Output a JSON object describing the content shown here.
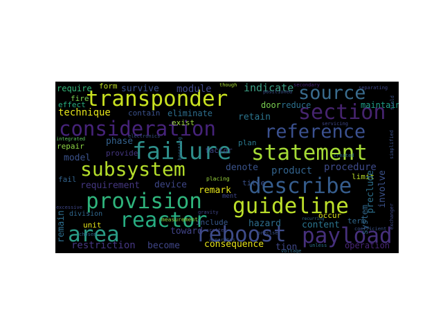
{
  "words": [
    {
      "id": "transponder",
      "text": "transponder",
      "color": "#c8e020"
    },
    {
      "id": "section",
      "text": "section",
      "color": "#46246f"
    },
    {
      "id": "consideration",
      "text": "consideration",
      "color": "#46237a"
    },
    {
      "id": "reference",
      "text": "reference",
      "color": "#3b5190"
    },
    {
      "id": "source",
      "text": "source",
      "color": "#3a6c8e"
    },
    {
      "id": "failure",
      "text": "failure",
      "color": "#2e8f8b"
    },
    {
      "id": "statement",
      "text": "statement",
      "color": "#a5db36"
    },
    {
      "id": "subsystem",
      "text": "subsystem",
      "color": "#b5de2b"
    },
    {
      "id": "describe",
      "text": "describe",
      "color": "#365d8d"
    },
    {
      "id": "provision",
      "text": "provision",
      "color": "#2fb47c"
    },
    {
      "id": "guideline",
      "text": "guideline",
      "color": "#bde02a"
    },
    {
      "id": "reactor",
      "text": "reactor",
      "color": "#27ad81"
    },
    {
      "id": "area",
      "text": "area",
      "color": "#2a9c86"
    },
    {
      "id": "reboost",
      "text": "reboost",
      "color": "#3e4c8a"
    },
    {
      "id": "payload",
      "text": "payload",
      "color": "#46307c"
    },
    {
      "id": "technique",
      "text": "technique",
      "color": "#e6e51a"
    },
    {
      "id": "require",
      "text": "require",
      "color": "#35b779"
    },
    {
      "id": "form",
      "text": "form",
      "color": "#c0df25"
    },
    {
      "id": "survive",
      "text": "survive",
      "color": "#3b518b"
    },
    {
      "id": "module",
      "text": "module",
      "color": "#3f4788"
    },
    {
      "id": "indicate",
      "text": "indicate",
      "color": "#3d9f85"
    },
    {
      "id": "door",
      "text": "door",
      "color": "#7ad151"
    },
    {
      "id": "reduce",
      "text": "reduce",
      "color": "#2c718e"
    },
    {
      "id": "maintain",
      "text": "maintain",
      "color": "#1f9e89"
    },
    {
      "id": "fire",
      "text": "fire",
      "color": "#7ad151"
    },
    {
      "id": "effect",
      "text": "effect",
      "color": "#28ae80"
    },
    {
      "id": "contain",
      "text": "contain",
      "color": "#3b528b"
    },
    {
      "id": "eliminate",
      "text": "eliminate",
      "color": "#2e6e8e"
    },
    {
      "id": "exist",
      "text": "exist",
      "color": "#9cd73e"
    },
    {
      "id": "retain",
      "text": "retain",
      "color": "#2b758e"
    },
    {
      "id": "phase",
      "text": "phase",
      "color": "#34618d"
    },
    {
      "id": "repair",
      "text": "repair",
      "color": "#8fd744"
    },
    {
      "id": "provide",
      "text": "provide",
      "color": "#453781"
    },
    {
      "id": "factor",
      "text": "factor",
      "color": "#3f4788"
    },
    {
      "id": "plan",
      "text": "plan",
      "color": "#2a788e"
    },
    {
      "id": "model",
      "text": "model",
      "color": "#3b528b"
    },
    {
      "id": "denote",
      "text": "denote",
      "color": "#3a548c"
    },
    {
      "id": "product",
      "text": "product",
      "color": "#33638d"
    },
    {
      "id": "procedure",
      "text": "procedure",
      "color": "#3e4a89"
    },
    {
      "id": "requirement",
      "text": "requirement",
      "color": "#453781"
    },
    {
      "id": "fail",
      "text": "fail",
      "color": "#33638d"
    },
    {
      "id": "device",
      "text": "device",
      "color": "#3f4788"
    },
    {
      "id": "limit",
      "text": "limit",
      "color": "#bade28"
    },
    {
      "id": "remark",
      "text": "remark",
      "color": "#e5e419"
    },
    {
      "id": "preclude",
      "text": "preclude",
      "color": "#2d708e"
    },
    {
      "id": "involve",
      "text": "involve",
      "color": "#3b528b"
    },
    {
      "id": "hazard",
      "text": "hazard",
      "color": "#2e6e8e"
    },
    {
      "id": "content",
      "text": "content",
      "color": "#2b758e"
    },
    {
      "id": "system",
      "text": "system",
      "color": "#31688e"
    },
    {
      "id": "term",
      "text": "term",
      "color": "#31688e"
    },
    {
      "id": "remain",
      "text": "remain",
      "color": "#2e6e8e"
    },
    {
      "id": "unit",
      "text": "unit",
      "color": "#e5e419"
    },
    {
      "id": "toward",
      "text": "toward",
      "color": "#414487"
    },
    {
      "id": "include",
      "text": "include",
      "color": "#38588c"
    },
    {
      "id": "occur",
      "text": "occur",
      "color": "#dde318"
    },
    {
      "id": "restriction",
      "text": "restriction",
      "color": "#453781"
    },
    {
      "id": "become",
      "text": "become",
      "color": "#404688"
    },
    {
      "id": "consequence",
      "text": "consequence",
      "color": "#e7e419"
    },
    {
      "id": "operation",
      "text": "operation",
      "color": "#482576"
    },
    {
      "id": "tion",
      "text": "tion",
      "color": "#3f4788"
    },
    {
      "id": "division",
      "text": "division",
      "color": "#31688e"
    },
    {
      "id": "measurement",
      "text": "measurement",
      "color": "#8fd744"
    },
    {
      "id": "placing",
      "text": "placing",
      "color": "#9cd73e"
    },
    {
      "id": "title",
      "text": "title",
      "color": "#3b528b"
    },
    {
      "id": "ment",
      "text": "ment",
      "color": "#3f4788"
    },
    {
      "id": "unless",
      "text": "unless",
      "color": "#2c718e"
    },
    {
      "id": "field",
      "text": "field",
      "color": "#3b528b"
    },
    {
      "id": "exchanger",
      "text": "exchanger",
      "color": "#3e4a89"
    },
    {
      "id": "simplified",
      "text": "simplified",
      "color": "#3b528b"
    },
    {
      "id": "boosting",
      "text": "boosting",
      "color": "#31688e"
    },
    {
      "id": "though",
      "text": "though",
      "color": "#a8db34"
    },
    {
      "id": "separating",
      "text": "separating",
      "color": "#3f4788"
    },
    {
      "id": "positioned",
      "text": "positioned",
      "color": "#3b528b"
    },
    {
      "id": "secondary",
      "text": "secondary",
      "color": "#482576"
    },
    {
      "id": "excessive",
      "text": "excessive",
      "color": "#3f4788"
    },
    {
      "id": "integrated",
      "text": "integrated",
      "color": "#5ec962"
    },
    {
      "id": "electronics",
      "text": "electronics",
      "color": "#3b528b"
    },
    {
      "id": "gravity",
      "text": "gravity",
      "color": "#404688"
    },
    {
      "id": "chosen",
      "text": "chosen",
      "color": "#31688e"
    },
    {
      "id": "coefficient",
      "text": "coefficient",
      "color": "#3b528b"
    },
    {
      "id": "created",
      "text": "created",
      "color": "#2e6e8e"
    },
    {
      "id": "apparatus",
      "text": "apparatus",
      "color": "#3b528b"
    },
    {
      "id": "servicing",
      "text": "servicing",
      "color": "#3f4788"
    },
    {
      "id": "scatter",
      "text": "scatter",
      "color": "#404688"
    },
    {
      "id": "voltage",
      "text": "voltage",
      "color": "#2e6e8e"
    },
    {
      "id": "recurring",
      "text": "recurring",
      "color": "#31688e"
    },
    {
      "id": "precise",
      "text": "precise",
      "color": "#3b528b"
    }
  ]
}
